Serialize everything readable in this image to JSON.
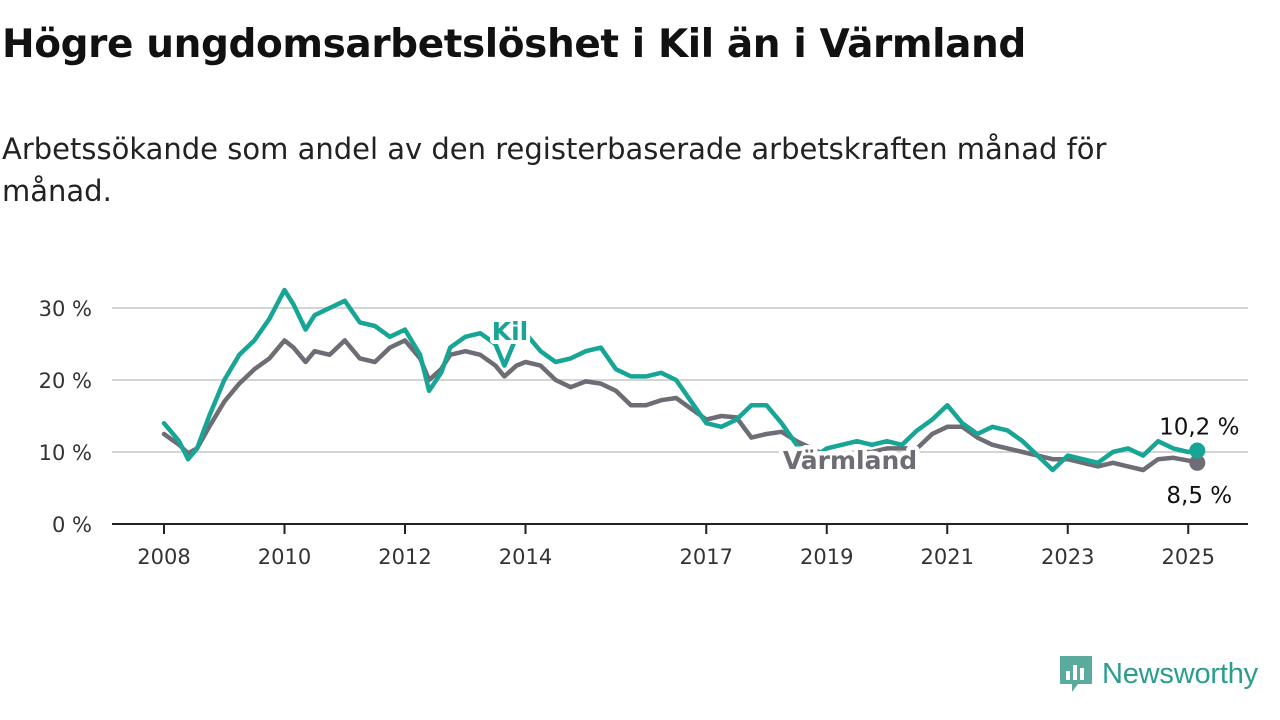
{
  "title": "Högre ungdomsarbetslöshet i Kil än i Värmland",
  "subtitle": "Arbetssökande som andel av den registerbaserade arbetskraften månad för månad.",
  "brand": {
    "name": "Newsworthy",
    "icon": "newsworthy-logo-icon",
    "color": "#5aab9e"
  },
  "chart_data": {
    "type": "line",
    "ylim": [
      0,
      32
    ],
    "xlim": [
      2008.0,
      2025.9
    ],
    "grid": true,
    "y_ticks": [
      {
        "value": 0,
        "label": "0 %"
      },
      {
        "value": 10,
        "label": "10 %"
      },
      {
        "value": 20,
        "label": "20 %"
      },
      {
        "value": 30,
        "label": "30 %"
      }
    ],
    "x_ticks": [
      {
        "value": 2008,
        "label": "2008"
      },
      {
        "value": 2010,
        "label": "2010"
      },
      {
        "value": 2012,
        "label": "2012"
      },
      {
        "value": 2014,
        "label": "2014"
      },
      {
        "value": 2017,
        "label": "2017"
      },
      {
        "value": 2019,
        "label": "2019"
      },
      {
        "value": 2021,
        "label": "2021"
      },
      {
        "value": 2023,
        "label": "2023"
      },
      {
        "value": 2025,
        "label": "2025"
      }
    ],
    "series": [
      {
        "name": "Värmland",
        "color": "#6e6c74",
        "end_label": "8,5 %",
        "x": [
          2008.0,
          2008.25,
          2008.4,
          2008.55,
          2008.75,
          2009.0,
          2009.25,
          2009.5,
          2009.75,
          2010.0,
          2010.15,
          2010.35,
          2010.5,
          2010.75,
          2011.0,
          2011.25,
          2011.5,
          2011.75,
          2012.0,
          2012.25,
          2012.4,
          2012.6,
          2012.75,
          2013.0,
          2013.25,
          2013.5,
          2013.65,
          2013.85,
          2014.0,
          2014.25,
          2014.5,
          2014.75,
          2015.0,
          2015.25,
          2015.5,
          2015.75,
          2016.0,
          2016.25,
          2016.5,
          2016.75,
          2017.0,
          2017.25,
          2017.5,
          2017.75,
          2018.0,
          2018.25,
          2018.5,
          2018.75,
          2019.0,
          2019.25,
          2019.5,
          2019.75,
          2020.0,
          2020.25,
          2020.5,
          2020.75,
          2021.0,
          2021.25,
          2021.5,
          2021.75,
          2022.0,
          2022.25,
          2022.5,
          2022.75,
          2023.0,
          2023.25,
          2023.5,
          2023.75,
          2024.0,
          2024.25,
          2024.5,
          2024.75,
          2025.0,
          2025.15
        ],
        "values": [
          12.5,
          11.0,
          9.8,
          10.5,
          13.5,
          17.0,
          19.5,
          21.5,
          23.0,
          25.5,
          24.5,
          22.5,
          24.0,
          23.5,
          25.5,
          23.0,
          22.5,
          24.5,
          25.5,
          23.0,
          20.0,
          21.5,
          23.5,
          24.0,
          23.5,
          22.0,
          20.5,
          22.0,
          22.5,
          22.0,
          20.0,
          19.0,
          19.8,
          19.5,
          18.5,
          16.5,
          16.5,
          17.2,
          17.5,
          16.0,
          14.5,
          15.0,
          14.8,
          12.0,
          12.5,
          12.8,
          11.5,
          10.5,
          9.5,
          9.5,
          10.0,
          10.0,
          10.5,
          10.5,
          10.5,
          12.5,
          13.5,
          13.5,
          12.0,
          11.0,
          10.5,
          10.0,
          9.5,
          9.0,
          9.0,
          8.5,
          8.0,
          8.5,
          8.0,
          7.5,
          9.0,
          9.2,
          8.8,
          8.5
        ]
      },
      {
        "name": "Kil",
        "color": "#17a595",
        "end_label": "10,2 %",
        "x": [
          2008.0,
          2008.25,
          2008.4,
          2008.55,
          2008.75,
          2009.0,
          2009.25,
          2009.5,
          2009.75,
          2010.0,
          2010.15,
          2010.35,
          2010.5,
          2010.75,
          2011.0,
          2011.25,
          2011.5,
          2011.75,
          2012.0,
          2012.25,
          2012.4,
          2012.6,
          2012.75,
          2013.0,
          2013.25,
          2013.5,
          2013.65,
          2013.85,
          2014.0,
          2014.25,
          2014.5,
          2014.75,
          2015.0,
          2015.25,
          2015.5,
          2015.75,
          2016.0,
          2016.25,
          2016.5,
          2016.75,
          2017.0,
          2017.25,
          2017.5,
          2017.75,
          2018.0,
          2018.25,
          2018.5,
          2018.75,
          2019.0,
          2019.25,
          2019.5,
          2019.75,
          2020.0,
          2020.25,
          2020.5,
          2020.75,
          2021.0,
          2021.25,
          2021.5,
          2021.75,
          2022.0,
          2022.25,
          2022.5,
          2022.75,
          2023.0,
          2023.25,
          2023.5,
          2023.75,
          2024.0,
          2024.25,
          2024.5,
          2024.75,
          2025.0,
          2025.15
        ],
        "values": [
          14.0,
          11.5,
          9.0,
          10.5,
          15.0,
          20.0,
          23.5,
          25.5,
          28.5,
          32.5,
          30.5,
          27.0,
          29.0,
          30.0,
          31.0,
          28.0,
          27.5,
          26.0,
          27.0,
          23.5,
          18.5,
          21.0,
          24.5,
          26.0,
          26.5,
          25.0,
          22.0,
          26.0,
          26.5,
          24.0,
          22.5,
          23.0,
          24.0,
          24.5,
          21.5,
          20.5,
          20.5,
          21.0,
          20.0,
          17.0,
          14.0,
          13.5,
          14.5,
          16.5,
          16.5,
          14.0,
          11.0,
          9.0,
          10.5,
          11.0,
          11.5,
          11.0,
          11.5,
          11.0,
          13.0,
          14.5,
          16.5,
          14.0,
          12.5,
          13.5,
          13.0,
          11.5,
          9.5,
          7.5,
          9.5,
          9.0,
          8.5,
          10.0,
          10.5,
          9.5,
          11.5,
          10.5,
          10.0,
          10.2
        ]
      }
    ],
    "annotations": [
      {
        "text": "Kil",
        "series": "Kil"
      },
      {
        "text": "Värmland",
        "series": "Värmland"
      }
    ]
  }
}
